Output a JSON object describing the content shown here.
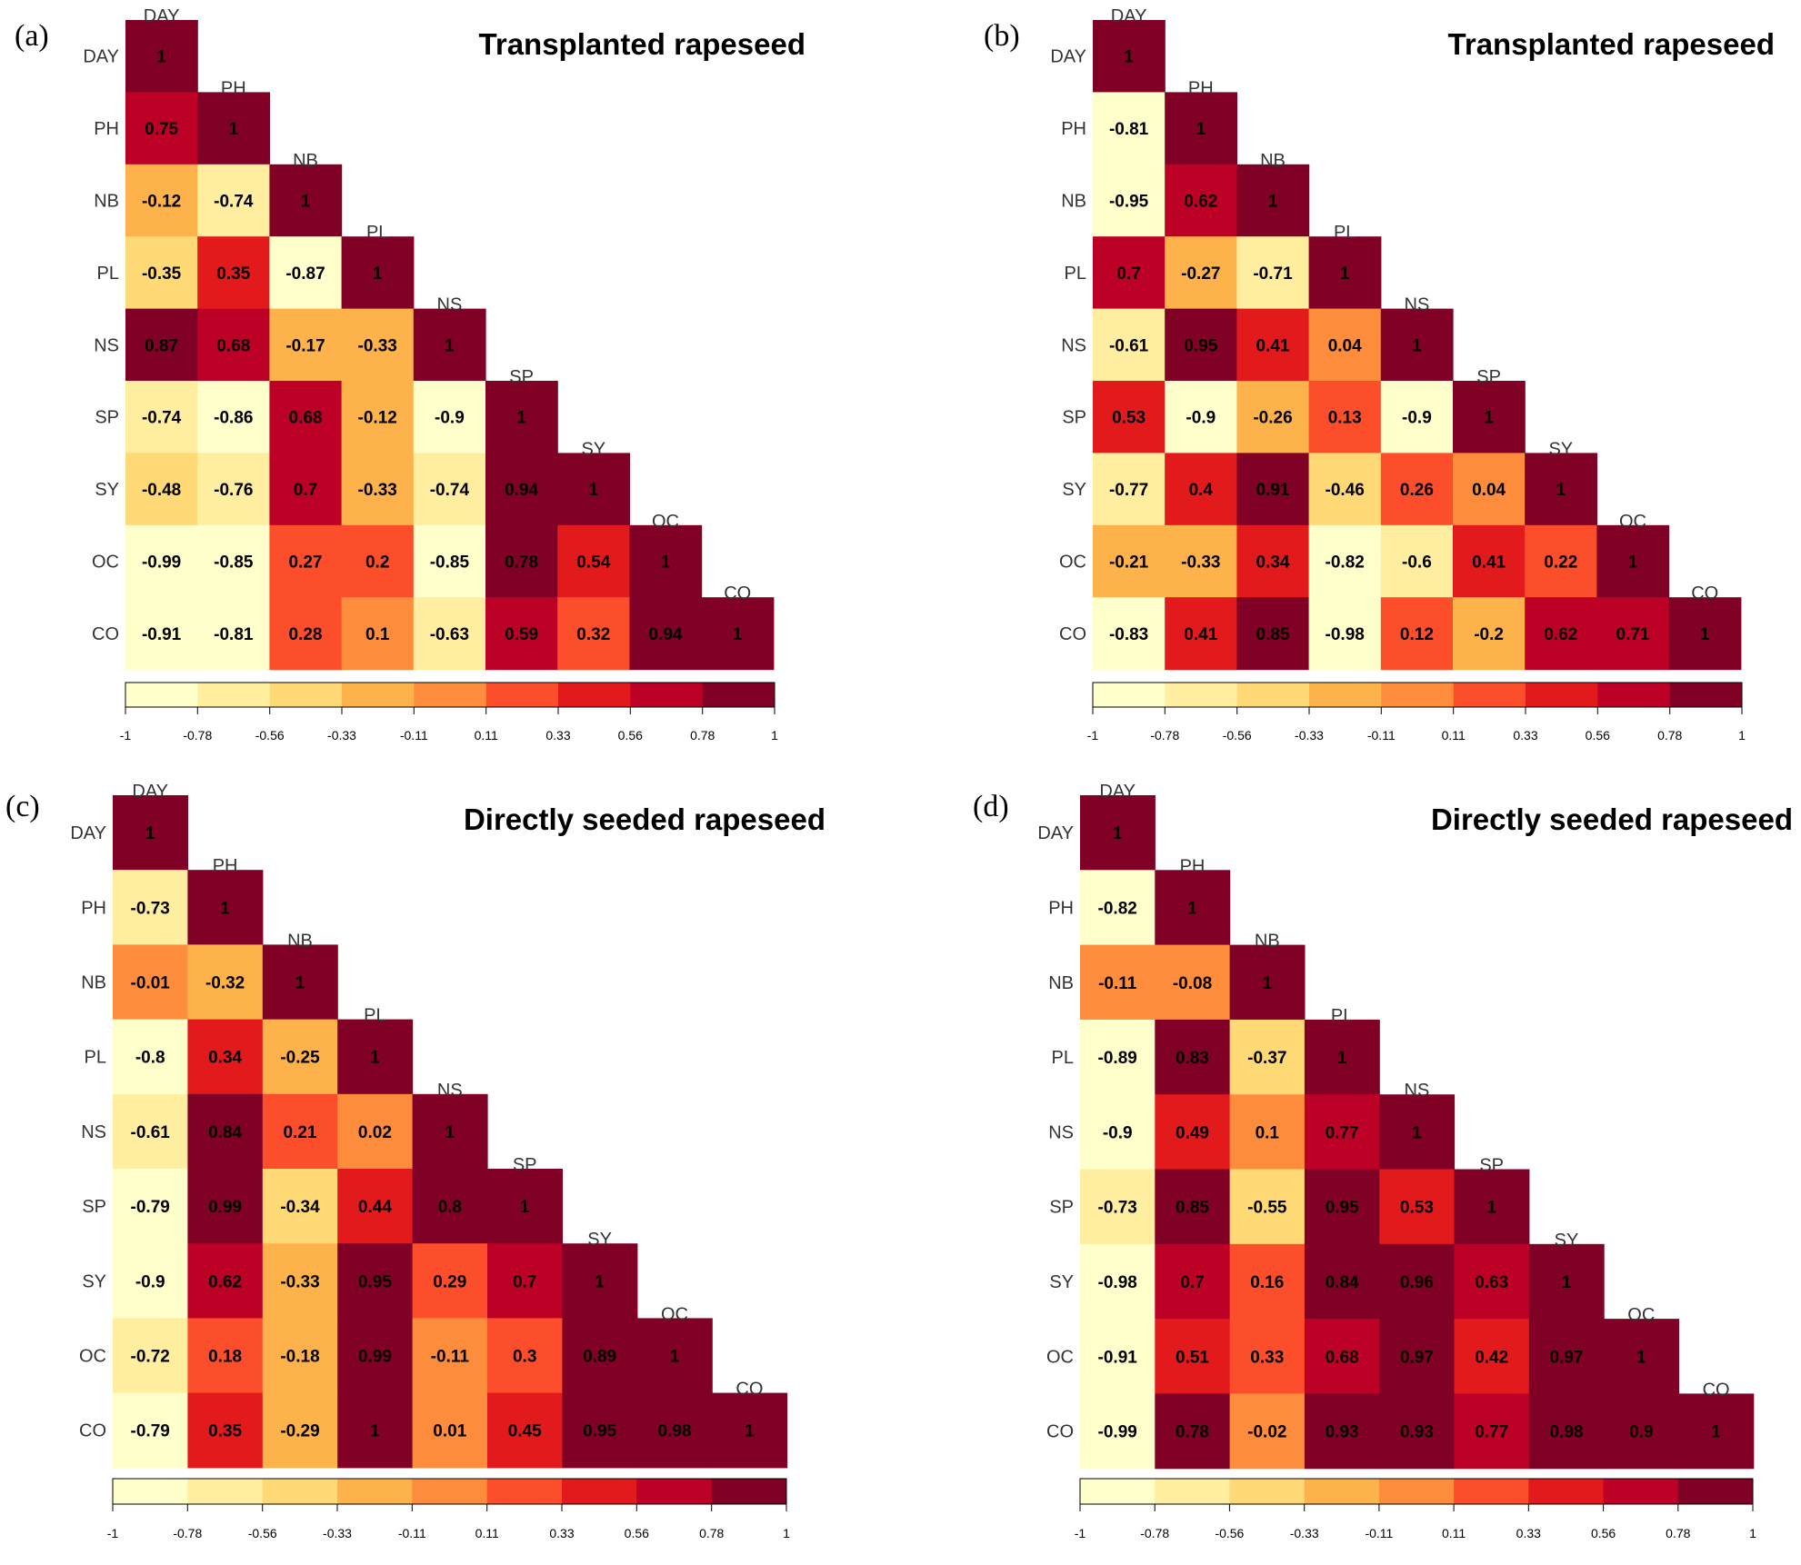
{
  "colors": {
    "scale": [
      "#ffffcc",
      "#ffeda0",
      "#fed976",
      "#feb24c",
      "#fd8d3c",
      "#fc4e2a",
      "#e31a1c",
      "#bd0026",
      "#800026"
    ]
  },
  "chart_data": [
    {
      "type": "heatmap",
      "panel": "(a)",
      "title": "Transplanted rapeseed",
      "labels": [
        "DAY",
        "PH",
        "NB",
        "PL",
        "NS",
        "SP",
        "SY",
        "OC",
        "CO"
      ],
      "colorbar_ticks": [
        "-1",
        "-0.78",
        "-0.56",
        "-0.33",
        "-0.11",
        "0.11",
        "0.33",
        "0.56",
        "0.78",
        "1"
      ],
      "values": [
        [
          1
        ],
        [
          0.75,
          1
        ],
        [
          -0.12,
          -0.74,
          1
        ],
        [
          -0.35,
          0.35,
          -0.87,
          1
        ],
        [
          0.87,
          0.68,
          -0.17,
          -0.33,
          1
        ],
        [
          -0.74,
          -0.86,
          0.68,
          -0.12,
          -0.9,
          1
        ],
        [
          -0.48,
          -0.76,
          0.7,
          -0.33,
          -0.74,
          0.94,
          1
        ],
        [
          -0.99,
          -0.85,
          0.27,
          0.2,
          -0.85,
          0.78,
          0.54,
          1
        ],
        [
          -0.91,
          -0.81,
          0.28,
          0.1,
          -0.63,
          0.59,
          0.32,
          0.94,
          1
        ]
      ]
    },
    {
      "type": "heatmap",
      "panel": "(b)",
      "title": "Transplanted rapeseed",
      "labels": [
        "DAY",
        "PH",
        "NB",
        "PL",
        "NS",
        "SP",
        "SY",
        "OC",
        "CO"
      ],
      "colorbar_ticks": [
        "-1",
        "-0.78",
        "-0.56",
        "-0.33",
        "-0.11",
        "0.11",
        "0.33",
        "0.56",
        "0.78",
        "1"
      ],
      "values": [
        [
          1
        ],
        [
          -0.81,
          1
        ],
        [
          -0.95,
          0.62,
          1
        ],
        [
          0.7,
          -0.27,
          -0.71,
          1
        ],
        [
          -0.61,
          0.95,
          0.41,
          0.04,
          1
        ],
        [
          0.53,
          -0.9,
          -0.26,
          0.13,
          -0.9,
          1
        ],
        [
          -0.77,
          0.4,
          0.91,
          -0.46,
          0.26,
          0.04,
          1
        ],
        [
          -0.21,
          -0.33,
          0.34,
          -0.82,
          -0.6,
          0.41,
          0.22,
          1
        ],
        [
          -0.83,
          0.41,
          0.85,
          -0.98,
          0.12,
          -0.2,
          0.62,
          0.71,
          1
        ]
      ]
    },
    {
      "type": "heatmap",
      "panel": "(c)",
      "title": "Directly seeded rapeseed",
      "labels": [
        "DAY",
        "PH",
        "NB",
        "PL",
        "NS",
        "SP",
        "SY",
        "OC",
        "CO"
      ],
      "colorbar_ticks": [
        "-1",
        "-0.78",
        "-0.56",
        "-0.33",
        "-0.11",
        "0.11",
        "0.33",
        "0.56",
        "0.78",
        "1"
      ],
      "values": [
        [
          1
        ],
        [
          -0.73,
          1
        ],
        [
          -0.01,
          -0.32,
          1
        ],
        [
          -0.8,
          0.34,
          -0.25,
          1
        ],
        [
          -0.61,
          0.84,
          0.21,
          0.02,
          1
        ],
        [
          -0.79,
          0.99,
          -0.34,
          0.44,
          0.8,
          1
        ],
        [
          -0.9,
          0.62,
          -0.33,
          0.95,
          0.29,
          0.7,
          1
        ],
        [
          -0.72,
          0.18,
          -0.18,
          0.99,
          -0.11,
          0.3,
          0.89,
          1
        ],
        [
          -0.79,
          0.35,
          -0.29,
          1,
          0.01,
          0.45,
          0.95,
          0.98,
          1
        ]
      ]
    },
    {
      "type": "heatmap",
      "panel": "(d)",
      "title": "Directly seeded rapeseed",
      "labels": [
        "DAY",
        "PH",
        "NB",
        "PL",
        "NS",
        "SP",
        "SY",
        "OC",
        "CO"
      ],
      "colorbar_ticks": [
        "-1",
        "-0.78",
        "-0.56",
        "-0.33",
        "-0.11",
        "0.11",
        "0.33",
        "0.56",
        "0.78",
        "1"
      ],
      "values": [
        [
          1
        ],
        [
          -0.82,
          1
        ],
        [
          -0.11,
          -0.08,
          1
        ],
        [
          -0.89,
          0.83,
          -0.37,
          1
        ],
        [
          -0.9,
          0.49,
          0.1,
          0.77,
          1
        ],
        [
          -0.73,
          0.85,
          -0.55,
          0.95,
          0.53,
          1
        ],
        [
          -0.98,
          0.7,
          0.16,
          0.84,
          0.96,
          0.63,
          1
        ],
        [
          -0.91,
          0.51,
          0.33,
          0.68,
          0.97,
          0.42,
          0.97,
          1
        ],
        [
          -0.99,
          0.78,
          -0.02,
          0.93,
          0.93,
          0.77,
          0.98,
          0.9,
          1
        ]
      ]
    }
  ]
}
